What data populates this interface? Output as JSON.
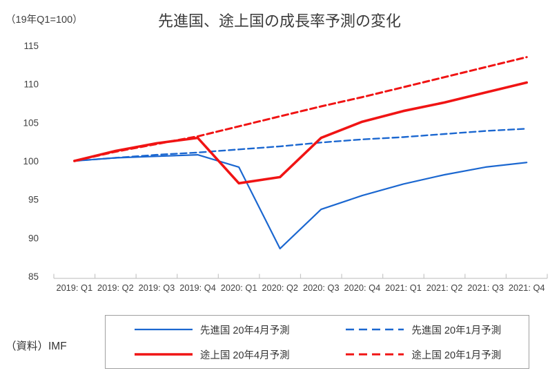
{
  "header": {
    "axis_unit_note": "（19年Q1=100）",
    "title": "先進国、途上国の成長率予測の変化"
  },
  "source_label": "（資料）IMF",
  "colors": {
    "text": "#404040",
    "axis": "#c6c6c6",
    "legend_border": "#9f9f9f",
    "blue": "#1b67d0",
    "red": "#f01414"
  },
  "chart_data": {
    "type": "line",
    "title": "先進国、途上国の成長率予測の変化",
    "unit_note": "（19年Q1=100）",
    "xlabel": "",
    "ylabel": "",
    "ylim": [
      85,
      115
    ],
    "yticks": [
      85,
      90,
      95,
      100,
      105,
      110,
      115
    ],
    "grid": false,
    "legend_position": "bottom",
    "categories": [
      "2019: Q1",
      "2019: Q2",
      "2019: Q3",
      "2019: Q4",
      "2020: Q1",
      "2020: Q2",
      "2020: Q3",
      "2020: Q4",
      "2021: Q1",
      "2021: Q2",
      "2021: Q3",
      "2021: Q4"
    ],
    "series": [
      {
        "id": "advanced-apr2020-forecast",
        "name": "先進国 20年4月予測",
        "color": "#1b67d0",
        "dash": "solid",
        "width": 2.2,
        "values": [
          100,
          100.4,
          100.6,
          100.8,
          99.2,
          88.6,
          93.7,
          95.5,
          97.0,
          98.2,
          99.2,
          99.8
        ]
      },
      {
        "id": "advanced-jan2020-forecast",
        "name": "先進国 20年1月予測",
        "color": "#1b67d0",
        "dash": "dashed",
        "width": 2.4,
        "values": [
          100,
          100.4,
          100.8,
          101.1,
          101.5,
          101.9,
          102.4,
          102.8,
          103.1,
          103.5,
          103.9,
          104.2
        ]
      },
      {
        "id": "emerging-apr2020-forecast",
        "name": "途上国 20年4月予測",
        "color": "#f01414",
        "dash": "solid",
        "width": 3.6,
        "values": [
          100,
          101.3,
          102.3,
          103.0,
          97.1,
          97.9,
          103.0,
          105.1,
          106.5,
          107.6,
          108.9,
          110.2
        ]
      },
      {
        "id": "emerging-jan2020-forecast",
        "name": "途上国 20年1月予測",
        "color": "#f01414",
        "dash": "dashed",
        "width": 3.0,
        "values": [
          100,
          101.2,
          102.2,
          103.2,
          104.5,
          105.8,
          107.1,
          108.3,
          109.6,
          110.9,
          112.2,
          113.5
        ]
      }
    ]
  }
}
